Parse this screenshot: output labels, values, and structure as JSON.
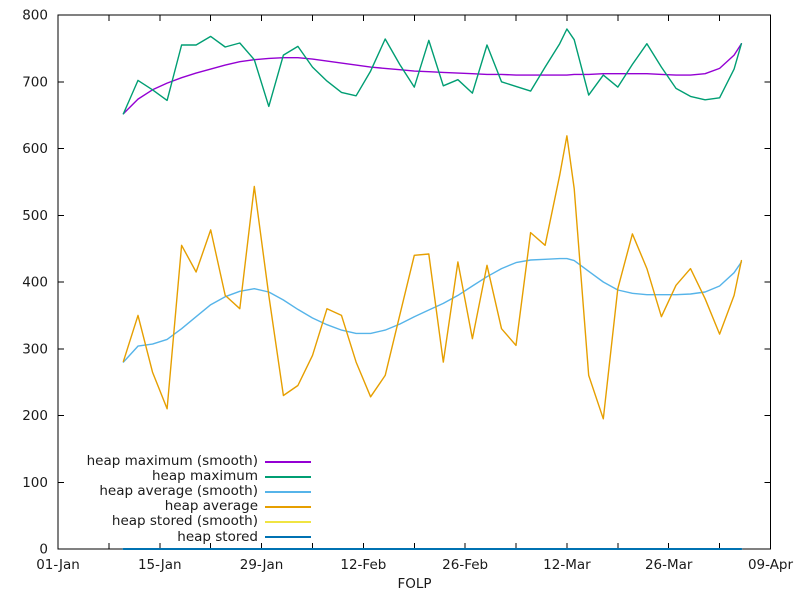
{
  "chart_data": {
    "type": "line",
    "title": "",
    "xlabel": "FOLP",
    "ylabel": "",
    "ylim": [
      0,
      800
    ],
    "grid": false,
    "background": "#ffffff",
    "legend_position": "inside-bottom-left",
    "y_ticks": [
      "0",
      "100",
      "200",
      "300",
      "400",
      "500",
      "600",
      "700",
      "800"
    ],
    "x_axis": {
      "unit": "days since 01-Jan",
      "range_days": [
        0,
        98
      ],
      "major_ticks": [
        {
          "day": 0,
          "label": "01-Jan"
        },
        {
          "day": 14,
          "label": "15-Jan"
        },
        {
          "day": 28,
          "label": "29-Jan"
        },
        {
          "day": 42,
          "label": "12-Feb"
        },
        {
          "day": 56,
          "label": "26-Feb"
        },
        {
          "day": 70,
          "label": "12-Mar"
        },
        {
          "day": 84,
          "label": "26-Mar"
        },
        {
          "day": 98,
          "label": "09-Apr"
        }
      ],
      "minor_tick_days": [
        7,
        21,
        35,
        49,
        63,
        77,
        91
      ]
    },
    "x_days": [
      9,
      11,
      13,
      15,
      17,
      19,
      21,
      23,
      25,
      27,
      29,
      31,
      33,
      35,
      37,
      39,
      41,
      43,
      45,
      47,
      49,
      51,
      53,
      55,
      57,
      59,
      61,
      63,
      65,
      67,
      69,
      70,
      71,
      73,
      75,
      77,
      79,
      81,
      83,
      85,
      87,
      89,
      91,
      93,
      94
    ],
    "series": [
      {
        "name": "heap maximum (smooth)",
        "color": "#9400d3",
        "width": 1.4,
        "values": [
          652,
          674,
          688,
          698,
          706,
          713,
          719,
          725,
          730,
          733,
          735,
          736,
          736,
          734,
          731,
          728,
          725,
          722,
          720,
          718,
          716,
          715,
          714,
          713,
          712,
          711,
          711,
          710,
          710,
          710,
          710,
          710,
          711,
          711,
          712,
          712,
          712,
          712,
          711,
          710,
          710,
          712,
          720,
          740,
          757
        ]
      },
      {
        "name": "heap maximum",
        "color": "#009e73",
        "width": 1.4,
        "values": [
          652,
          702,
          688,
          672,
          755,
          755,
          768,
          752,
          758,
          733,
          663,
          740,
          753,
          722,
          701,
          684,
          679,
          716,
          764,
          726,
          692,
          762,
          694,
          703,
          683,
          755,
          700,
          693,
          686,
          722,
          757,
          779,
          763,
          680,
          710,
          692,
          726,
          757,
          722,
          690,
          678,
          673,
          676,
          719,
          757
        ]
      },
      {
        "name": "heap average (smooth)",
        "color": "#56b4e9",
        "width": 1.4,
        "values": [
          280,
          304,
          307,
          314,
          330,
          348,
          366,
          378,
          386,
          390,
          385,
          373,
          359,
          346,
          336,
          328,
          323,
          323,
          328,
          337,
          348,
          358,
          368,
          380,
          394,
          408,
          420,
          429,
          433,
          434,
          435,
          435,
          432,
          416,
          400,
          388,
          383,
          381,
          381,
          381,
          382,
          385,
          394,
          414,
          430
        ]
      },
      {
        "name": "heap average",
        "color": "#e69f00",
        "width": 1.4,
        "values": [
          281,
          350,
          265,
          210,
          455,
          415,
          478,
          380,
          360,
          543,
          380,
          230,
          245,
          290,
          360,
          350,
          280,
          228,
          260,
          350,
          440,
          442,
          280,
          430,
          315,
          425,
          330,
          305,
          474,
          455,
          560,
          619,
          540,
          260,
          195,
          390,
          472,
          420,
          348,
          395,
          420,
          375,
          322,
          380,
          432
        ]
      },
      {
        "name": "heap stored (smooth)",
        "color": "#f0e442",
        "width": 1.6,
        "values": [
          0,
          0,
          0,
          0,
          0,
          0,
          0,
          0,
          0,
          0,
          0,
          0,
          0,
          0,
          0,
          0,
          0,
          0,
          0,
          0,
          0,
          0,
          0,
          0,
          0,
          0,
          0,
          0,
          0,
          0,
          0,
          0,
          0,
          0,
          0,
          0,
          0,
          0,
          0,
          0,
          0,
          0,
          0,
          0,
          0
        ]
      },
      {
        "name": "heap stored",
        "color": "#0072b2",
        "width": 2,
        "values": [
          0,
          0,
          0,
          0,
          0,
          0,
          0,
          0,
          0,
          0,
          0,
          0,
          0,
          0,
          0,
          0,
          0,
          0,
          0,
          0,
          0,
          0,
          0,
          0,
          0,
          0,
          0,
          0,
          0,
          0,
          0,
          0,
          0,
          0,
          0,
          0,
          0,
          0,
          0,
          0,
          0,
          0,
          0,
          0,
          0
        ]
      }
    ]
  }
}
